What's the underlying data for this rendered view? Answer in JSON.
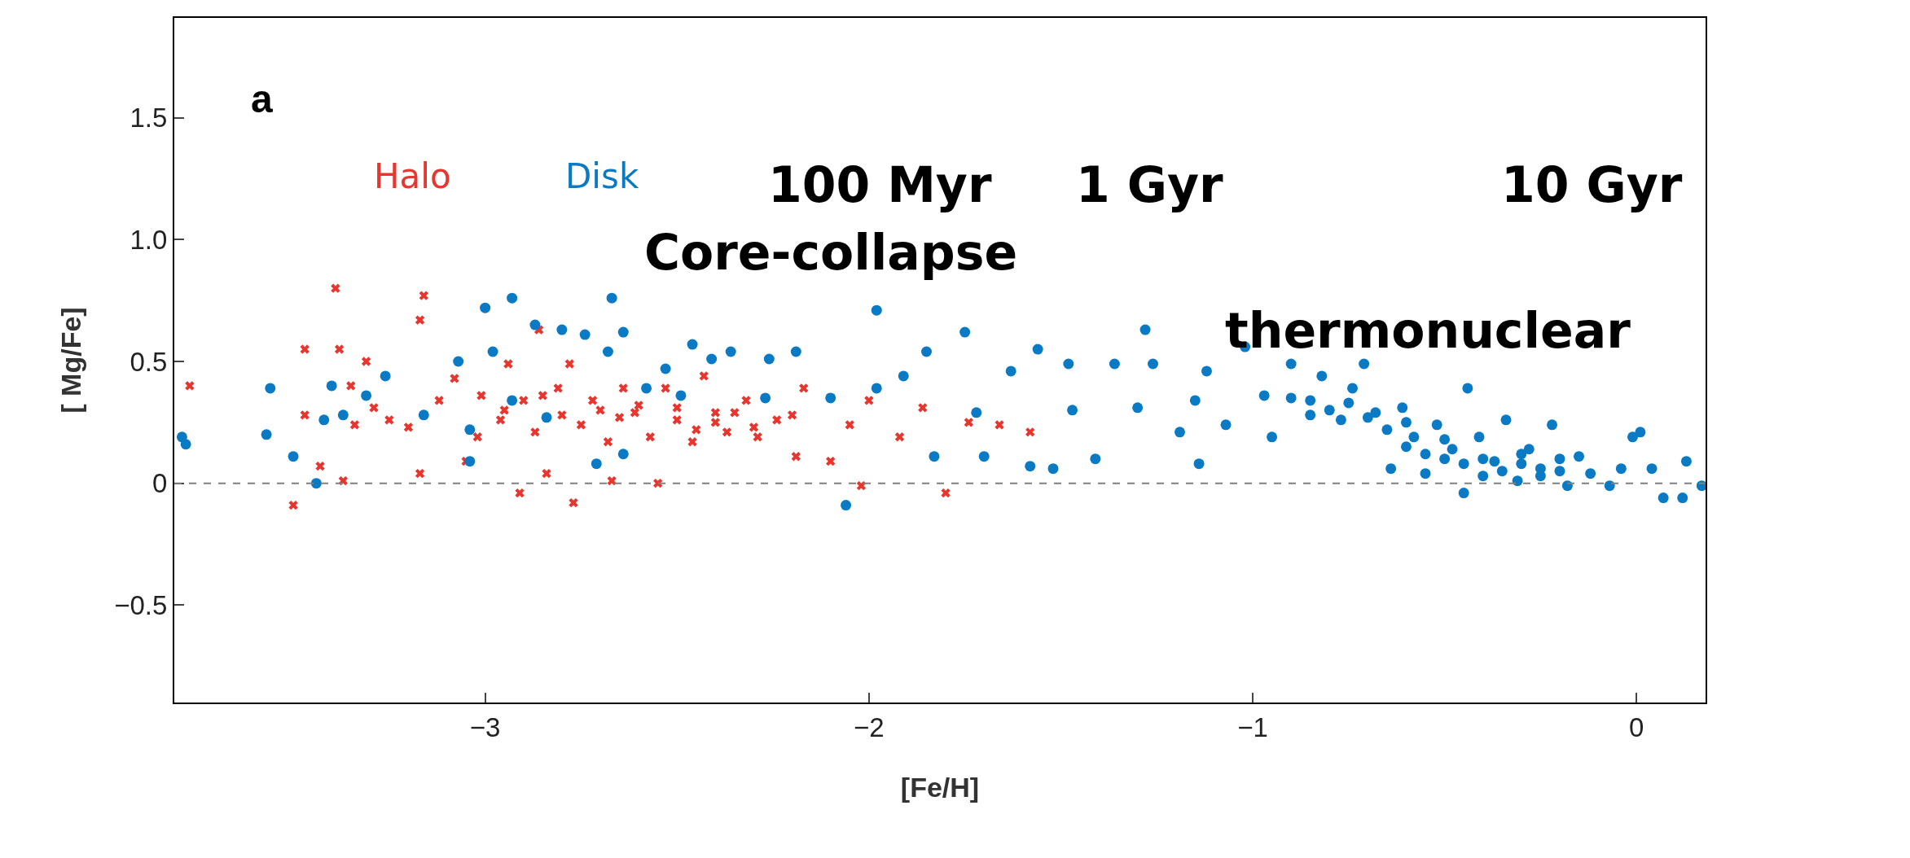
{
  "chart_data": {
    "type": "scatter",
    "xlabel": "[Fe/H]",
    "ylabel": "[ Mg/Fe]",
    "annotations": [
      "a",
      "100 Myr",
      "1 Gyr",
      "10 Gyr",
      "Core-collapse",
      "thermonuclear"
    ],
    "xlim": [
      -3.81,
      0.18
    ],
    "xticks": [
      {
        "value": -3,
        "label": "−3"
      },
      {
        "value": -2,
        "label": "−2"
      },
      {
        "value": -1,
        "label": "−1"
      },
      0
    ],
    "ylim": [
      -0.9,
      1.91
    ],
    "yticks": [
      {
        "value": -0.5,
        "label": "−0.5"
      },
      0,
      0.5,
      {
        "value": 1.0,
        "label": "1.0"
      },
      1.5
    ],
    "legend": false,
    "ref_lines": [
      {
        "axis": "y",
        "value": 0,
        "color": "#808080",
        "line_style": "dashed"
      }
    ],
    "series": [
      {
        "name": "Halo",
        "color": "#e8362e",
        "marker": "cross",
        "x": [
          -3.77,
          -3.5,
          -3.47,
          -3.47,
          -3.43,
          -3.39,
          -3.38,
          -3.37,
          -3.35,
          -3.34,
          -3.31,
          -3.29,
          -3.25,
          -3.2,
          -3.17,
          -3.16,
          -3.17,
          -3.12,
          -3.08,
          -3.05,
          -3.02,
          -3.01,
          -2.96,
          -2.94,
          -2.91,
          -2.9,
          -2.87,
          -2.86,
          -2.84,
          -2.81,
          -2.78,
          -2.77,
          -2.75,
          -2.72,
          -2.68,
          -2.67,
          -2.64,
          -2.61,
          -2.57,
          -2.55,
          -2.53,
          -2.5,
          -2.46,
          -2.43,
          -2.4,
          -2.37,
          -2.32,
          -2.29,
          -2.24,
          -2.19,
          -2.17,
          -2.1,
          -2.05,
          -2.02,
          -2.0,
          -1.92,
          -1.86,
          -1.8,
          -1.74,
          -1.66,
          -1.58,
          -2.95,
          -2.8,
          -2.7,
          -2.6,
          -2.5,
          -2.4,
          -2.3,
          -2.2,
          -2.85,
          -2.65,
          -2.45,
          -2.35
        ],
        "values": [
          0.4,
          -0.09,
          0.55,
          0.28,
          0.07,
          0.8,
          0.55,
          0.01,
          0.4,
          0.24,
          0.5,
          0.31,
          0.26,
          0.23,
          0.04,
          0.77,
          0.67,
          0.34,
          0.43,
          0.09,
          0.19,
          0.36,
          0.26,
          0.49,
          -0.04,
          0.34,
          0.21,
          0.63,
          0.04,
          0.39,
          0.49,
          -0.08,
          0.24,
          0.34,
          0.17,
          0.01,
          0.39,
          0.29,
          0.19,
          0.0,
          0.39,
          0.26,
          0.17,
          0.44,
          0.29,
          0.21,
          0.34,
          0.19,
          0.26,
          0.11,
          0.39,
          0.09,
          0.24,
          -0.01,
          0.34,
          0.19,
          0.31,
          -0.04,
          0.25,
          0.24,
          0.21,
          0.3,
          0.28,
          0.3,
          0.32,
          0.31,
          0.25,
          0.23,
          0.28,
          0.36,
          0.27,
          0.22,
          0.29
        ]
      },
      {
        "name": "Disk",
        "color": "#0a7ac4",
        "marker": "circle",
        "x": [
          -3.79,
          -3.78,
          -3.57,
          -3.56,
          -3.5,
          -3.44,
          -3.42,
          -3.4,
          -3.37,
          -3.31,
          -3.26,
          -3.16,
          -3.07,
          -3.04,
          -3.04,
          -3.0,
          -2.98,
          -2.93,
          -2.93,
          -2.87,
          -2.84,
          -2.8,
          -2.74,
          -2.71,
          -2.68,
          -2.67,
          -2.64,
          -2.64,
          -2.58,
          -2.53,
          -2.49,
          -2.46,
          -2.41,
          -2.36,
          -2.27,
          -2.26,
          -2.19,
          -2.1,
          -2.06,
          -1.98,
          -1.98,
          -1.91,
          -1.85,
          -1.83,
          -1.75,
          -1.72,
          -1.7,
          -1.63,
          -1.58,
          -1.56,
          -1.52,
          -1.48,
          -1.47,
          -1.41,
          -1.36,
          -1.3,
          -1.28,
          -1.26,
          -1.19,
          -1.15,
          -1.14,
          -1.12,
          -1.07,
          -1.02,
          -0.97,
          -0.95,
          -0.9,
          -0.85,
          -0.82,
          -0.77,
          -0.74,
          -0.71,
          -0.68,
          -0.64,
          -0.61,
          -0.58,
          -0.55,
          -0.52,
          -0.48,
          -0.45,
          -0.44,
          -0.41,
          -0.37,
          -0.34,
          -0.31,
          -0.28,
          -0.25,
          -0.22,
          -0.18,
          -0.15,
          -0.12,
          -0.07,
          -0.04,
          -0.01,
          0.01,
          0.04,
          0.07,
          0.12,
          0.13,
          0.17,
          -0.8,
          -0.75,
          -0.7,
          -0.65,
          -0.6,
          -0.55,
          -0.5,
          -0.45,
          -0.4,
          -0.35,
          -0.3,
          -0.25,
          -0.2,
          -0.9,
          -0.85,
          -0.6,
          -0.5,
          -0.4,
          -0.3,
          -0.2
        ],
        "values": [
          0.19,
          0.16,
          0.2,
          0.39,
          0.11,
          0.0,
          0.26,
          0.4,
          0.28,
          0.36,
          0.44,
          0.28,
          0.5,
          0.09,
          0.22,
          0.72,
          0.54,
          0.76,
          0.34,
          0.65,
          0.27,
          0.63,
          0.61,
          0.08,
          0.54,
          0.76,
          0.62,
          0.12,
          0.39,
          0.47,
          0.36,
          0.57,
          0.51,
          0.54,
          0.35,
          0.51,
          0.54,
          0.35,
          -0.09,
          0.71,
          0.39,
          0.44,
          0.54,
          0.11,
          0.62,
          0.29,
          0.11,
          0.46,
          0.07,
          0.55,
          0.06,
          0.49,
          0.3,
          0.1,
          0.49,
          0.31,
          0.63,
          0.49,
          0.21,
          0.34,
          0.08,
          0.46,
          0.24,
          0.56,
          0.36,
          0.19,
          0.49,
          0.34,
          0.44,
          0.26,
          0.39,
          0.49,
          0.29,
          0.06,
          0.31,
          0.19,
          0.04,
          0.24,
          0.14,
          -0.04,
          0.39,
          0.19,
          0.09,
          0.26,
          0.01,
          0.14,
          0.06,
          0.24,
          -0.01,
          0.11,
          0.04,
          -0.01,
          0.06,
          0.19,
          0.21,
          0.06,
          -0.06,
          -0.06,
          0.09,
          -0.01,
          0.3,
          0.33,
          0.27,
          0.22,
          0.15,
          0.12,
          0.1,
          0.08,
          0.1,
          0.05,
          0.08,
          0.03,
          0.05,
          0.35,
          0.28,
          0.25,
          0.18,
          0.03,
          0.12,
          0.1
        ]
      }
    ]
  }
}
